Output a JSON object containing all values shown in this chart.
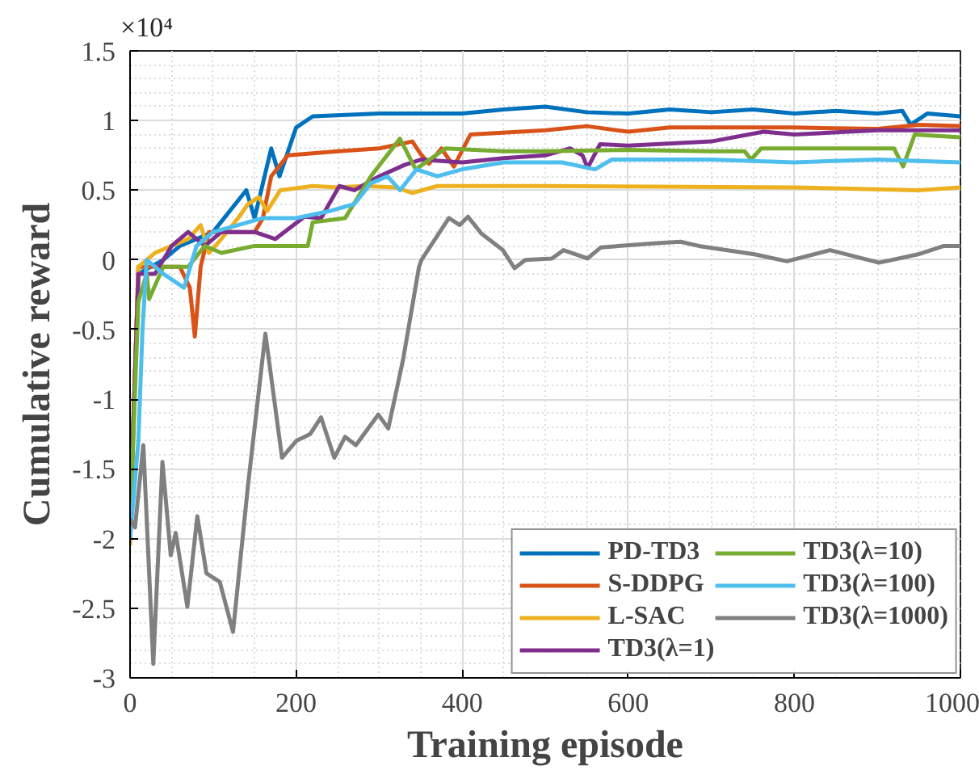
{
  "chart_data": {
    "type": "line",
    "xlabel": "Training episode",
    "ylabel": "Cumulative reward",
    "annotations": [
      "×10⁴"
    ],
    "xlim": [
      0,
      1000
    ],
    "xticks": [
      0,
      200,
      400,
      600,
      800,
      1000
    ],
    "ylim": [
      -3,
      1.5
    ],
    "yticks": [
      -3,
      -2.5,
      -2,
      -1.5,
      -1,
      -0.5,
      0,
      0.5,
      1,
      1.5
    ],
    "grid": true,
    "legend": "bottom right",
    "marker": "none",
    "line_style": "solid",
    "series": [
      {
        "name": "PD-TD3",
        "color": "#0072bd",
        "x": [
          0,
          10,
          40,
          60,
          100,
          140,
          150,
          170,
          180,
          200,
          220,
          300,
          400,
          450,
          500,
          550,
          600,
          650,
          700,
          750,
          800,
          850,
          900,
          930,
          940,
          960,
          1000
        ],
        "values": [
          -1.9,
          -0.1,
          0,
          0.1,
          0.2,
          0.5,
          0.3,
          0.8,
          0.6,
          0.95,
          1.03,
          1.05,
          1.05,
          1.08,
          1.1,
          1.06,
          1.05,
          1.08,
          1.06,
          1.08,
          1.05,
          1.07,
          1.05,
          1.07,
          0.97,
          1.05,
          1.03
        ]
      },
      {
        "name": "S-DDPG",
        "color": "#d95319",
        "x": [
          0,
          10,
          60,
          72,
          78,
          85,
          95,
          150,
          160,
          170,
          190,
          250,
          300,
          340,
          350,
          360,
          375,
          390,
          410,
          500,
          550,
          600,
          650,
          700,
          800,
          900,
          950,
          1000
        ],
        "values": [
          -1.9,
          -0.05,
          -0.05,
          -0.2,
          -0.55,
          -0.05,
          0.2,
          0.2,
          0.3,
          0.6,
          0.75,
          0.78,
          0.8,
          0.85,
          0.76,
          0.69,
          0.8,
          0.67,
          0.9,
          0.93,
          0.96,
          0.92,
          0.95,
          0.95,
          0.95,
          0.94,
          0.97,
          0.96
        ]
      },
      {
        "name": "L-SAC",
        "color": "#edb120",
        "x": [
          0,
          10,
          30,
          50,
          70,
          85,
          95,
          110,
          130,
          142,
          155,
          165,
          181,
          220,
          250,
          280,
          320,
          340,
          370,
          500,
          800,
          950,
          1000
        ],
        "values": [
          -2.05,
          -0.05,
          0.05,
          0.1,
          0.15,
          0.25,
          0.05,
          0.15,
          0.3,
          0.4,
          0.45,
          0.35,
          0.5,
          0.53,
          0.52,
          0.53,
          0.52,
          0.48,
          0.53,
          0.53,
          0.52,
          0.5,
          0.52
        ]
      },
      {
        "name": "TD3(λ=1)",
        "color": "#7e2f8e",
        "x": [
          0,
          10,
          30,
          50,
          70,
          90,
          110,
          150,
          175,
          210,
          230,
          252,
          270,
          300,
          330,
          350,
          400,
          450,
          500,
          530,
          545,
          551,
          566,
          600,
          700,
          763,
          800,
          900,
          1000
        ],
        "values": [
          -1.9,
          -0.1,
          -0.1,
          0.1,
          0.2,
          0.1,
          0.2,
          0.2,
          0.15,
          0.31,
          0.3,
          0.53,
          0.5,
          0.6,
          0.68,
          0.72,
          0.7,
          0.73,
          0.75,
          0.8,
          0.75,
          0.66,
          0.83,
          0.82,
          0.85,
          0.92,
          0.9,
          0.93,
          0.93
        ]
      },
      {
        "name": "TD3(λ=10)",
        "color": "#77ac30",
        "x": [
          0,
          10,
          20,
          23,
          40,
          70,
          90,
          110,
          150,
          214,
          220,
          259,
          290,
          325,
          344,
          380,
          450,
          500,
          600,
          700,
          740,
          748,
          760,
          850,
          920,
          931,
          945,
          1000
        ],
        "values": [
          -1.9,
          -0.3,
          -0.1,
          -0.28,
          -0.05,
          -0.05,
          0.1,
          0.05,
          0.1,
          0.1,
          0.27,
          0.3,
          0.6,
          0.87,
          0.65,
          0.8,
          0.78,
          0.78,
          0.79,
          0.78,
          0.78,
          0.72,
          0.8,
          0.8,
          0.8,
          0.67,
          0.9,
          0.88
        ]
      },
      {
        "name": "TD3(λ=100)",
        "color": "#4dbeee",
        "x": [
          0,
          10,
          15,
          20,
          40,
          65,
          80,
          100,
          130,
          160,
          200,
          240,
          270,
          290,
          310,
          325,
          345,
          370,
          400,
          450,
          520,
          560,
          580,
          700,
          800,
          900,
          1000
        ],
        "values": [
          -2.0,
          -1.3,
          -0.5,
          0,
          -0.1,
          -0.2,
          0.1,
          0.2,
          0.25,
          0.3,
          0.3,
          0.35,
          0.4,
          0.55,
          0.6,
          0.5,
          0.65,
          0.6,
          0.65,
          0.7,
          0.7,
          0.65,
          0.72,
          0.72,
          0.7,
          0.72,
          0.7
        ]
      },
      {
        "name": "TD3(λ=1000)",
        "color": "#808080",
        "x": [
          0,
          6,
          16,
          28,
          39,
          49,
          55,
          69,
          81,
          92,
          108,
          124,
          142,
          163,
          183,
          200,
          217,
          230,
          246,
          259,
          272,
          299,
          311,
          329,
          348,
          351,
          384,
          397,
          407,
          423,
          449,
          463,
          476,
          508,
          522,
          551,
          567,
          634,
          663,
          685,
          752,
          791,
          843,
          902,
          949,
          980,
          1000
        ],
        "values": [
          -1.86,
          -1.92,
          -1.33,
          -2.9,
          -1.45,
          -2.12,
          -1.96,
          -2.49,
          -1.84,
          -2.25,
          -2.31,
          -2.67,
          -1.62,
          -0.53,
          -1.42,
          -1.3,
          -1.25,
          -1.13,
          -1.42,
          -1.27,
          -1.33,
          -1.11,
          -1.21,
          -0.71,
          -0.05,
          0,
          0.3,
          0.25,
          0.31,
          0.19,
          0.07,
          -0.06,
          0,
          0.01,
          0.07,
          0.01,
          0.09,
          0.12,
          0.13,
          0.1,
          0.04,
          -0.01,
          0.07,
          -0.02,
          0.04,
          0.1,
          0.1
        ]
      }
    ]
  }
}
